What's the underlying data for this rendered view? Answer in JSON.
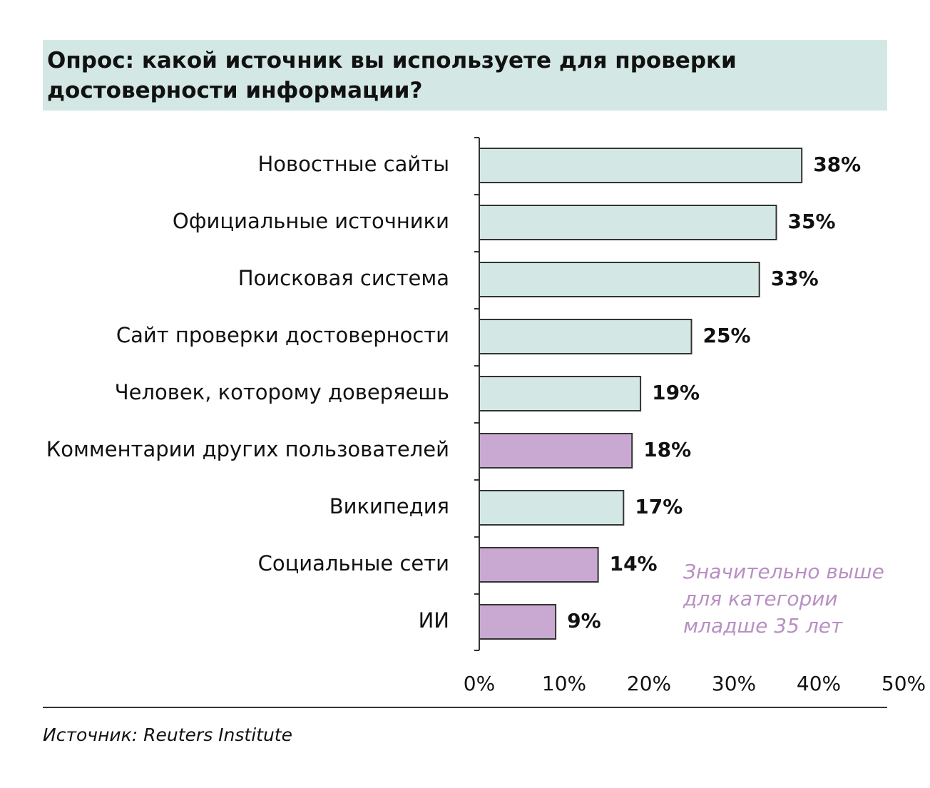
{
  "chart_data": {
    "type": "bar",
    "orientation": "horizontal",
    "title": "Опрос: какой источник вы используете для проверки достоверности информации?",
    "categories": [
      "Новостные сайты",
      "Официальные источники",
      "Поисковая система",
      "Сайт проверки достоверности",
      "Человек, которому доверяешь",
      "Комментарии других пользователей",
      "Википедия",
      "Социальные сети",
      "ИИ"
    ],
    "values": [
      38,
      35,
      33,
      25,
      19,
      18,
      17,
      14,
      9
    ],
    "value_labels": [
      "38%",
      "35%",
      "33%",
      "25%",
      "19%",
      "18%",
      "17%",
      "14%",
      "9%"
    ],
    "colors": [
      "#d3e8e4",
      "#d3e8e4",
      "#d3e8e4",
      "#d3e8e4",
      "#d3e8e4",
      "#c9a9d2",
      "#d3e8e4",
      "#c9a9d2",
      "#c9a9d2"
    ],
    "xlim": [
      0,
      50
    ],
    "xticks": [
      {
        "value": 0,
        "label": "0%"
      },
      {
        "value": 10,
        "label": "10%"
      },
      {
        "value": 20,
        "label": "20%"
      },
      {
        "value": 30,
        "label": "30%"
      },
      {
        "value": 40,
        "label": "40%"
      },
      {
        "value": 50,
        "label": "50%"
      }
    ],
    "annotation": [
      "Значительно выше",
      "для категории",
      "младше 35 лет"
    ],
    "annotation_color": "#b98fc4",
    "source": "Источник: Reuters Institute"
  }
}
